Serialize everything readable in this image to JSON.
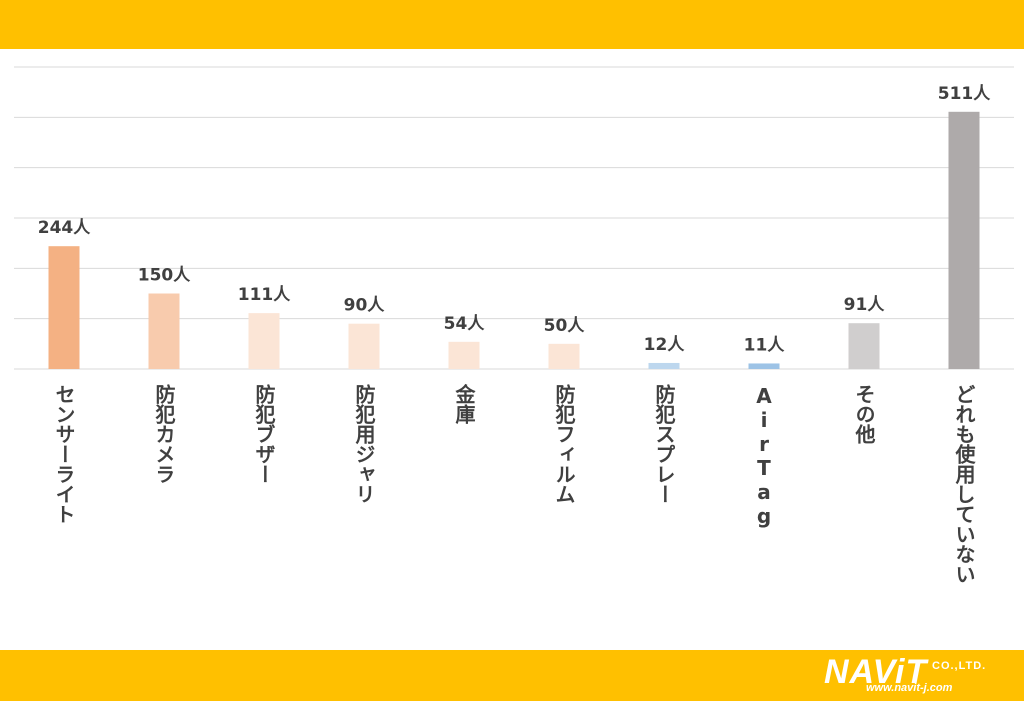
{
  "colors": {
    "band": "#ffc000",
    "grid": "#d9d9d9",
    "label_text": "#404040"
  },
  "logo": {
    "name": "NAViT",
    "suffix": "CO.,LTD.",
    "url": "www.navit-j.com"
  },
  "chart_data": {
    "type": "bar",
    "categories": [
      "センサーライト",
      "防犯カメラ",
      "防犯ブザー",
      "防犯用ジャリ",
      "金庫",
      "防犯フィルム",
      "防犯スプレー",
      "AirTag",
      "その他",
      "どれも使用していない"
    ],
    "values": [
      244,
      150,
      111,
      90,
      54,
      50,
      12,
      11,
      91,
      511
    ],
    "data_labels": [
      "244人",
      "150人",
      "111人",
      "90人",
      "54人",
      "50人",
      "12人",
      "11人",
      "91人",
      "511人"
    ],
    "bar_colors": [
      "#f4b183",
      "#f8cbad",
      "#fbe5d6",
      "#fbe5d6",
      "#fbe5d6",
      "#fbe5d6",
      "#bdd7ee",
      "#9dc3e6",
      "#d0cece",
      "#aeaaaa"
    ],
    "ylim": [
      0,
      600
    ],
    "y_gridlines": [
      0,
      100,
      200,
      300,
      400,
      500,
      600
    ],
    "grid": true,
    "legend": "none",
    "title": "",
    "xlabel": "",
    "ylabel": ""
  }
}
